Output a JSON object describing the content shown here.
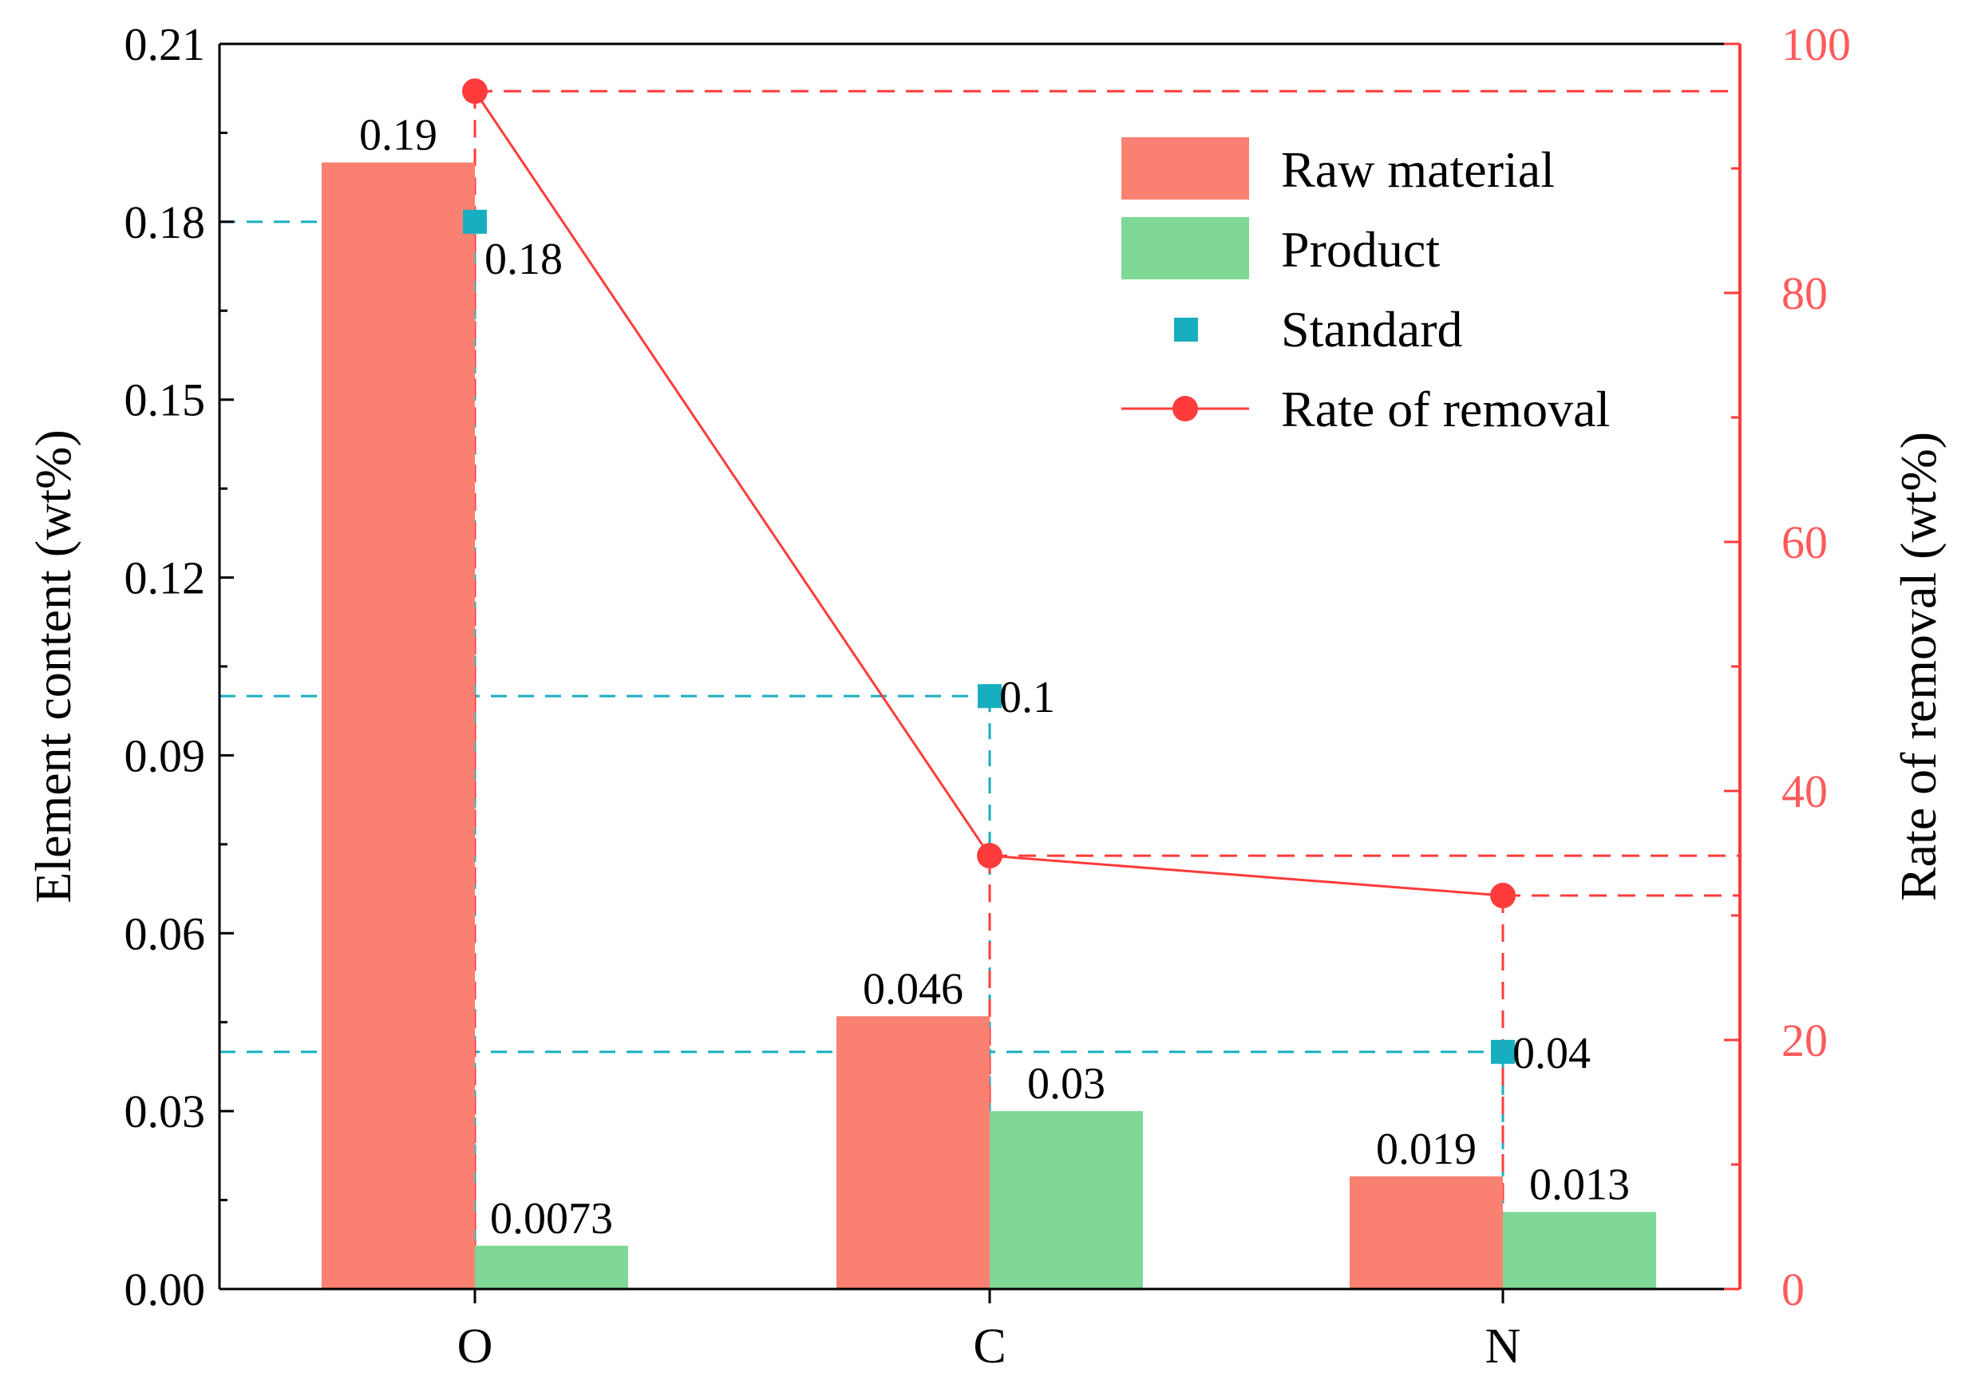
{
  "chart_data": {
    "type": "bar",
    "categories": [
      "O",
      "C",
      "N"
    ],
    "series": [
      {
        "name": "Raw material",
        "kind": "bar",
        "axis": "left",
        "values": [
          0.19,
          0.046,
          0.019
        ],
        "labels": [
          "0.19",
          "0.046",
          "0.019"
        ],
        "color": "#FA8072"
      },
      {
        "name": "Product",
        "kind": "bar",
        "axis": "left",
        "values": [
          0.0073,
          0.03,
          0.013
        ],
        "labels": [
          "0.0073",
          "0.03",
          "0.013"
        ],
        "color": "#80D897"
      },
      {
        "name": "Standard",
        "kind": "scatter",
        "axis": "left",
        "values": [
          0.18,
          0.1,
          0.04
        ],
        "labels": [
          "0.18",
          "0.1",
          "0.04"
        ],
        "color": "#17AFC0"
      },
      {
        "name": "Rate of removal",
        "kind": "line",
        "axis": "right",
        "values": [
          96.2,
          34.8,
          31.6
        ],
        "color": "#FF3B3B"
      }
    ],
    "ylabel": "Element content (wt%)",
    "y2label": "Rate of removal (wt%)",
    "ylim": [
      0,
      0.21
    ],
    "y2lim": [
      0,
      100
    ],
    "yticks": [
      "0.00",
      "0.03",
      "0.06",
      "0.09",
      "0.12",
      "0.15",
      "0.18",
      "0.21"
    ],
    "y2ticks": [
      "0",
      "20",
      "40",
      "60",
      "80",
      "100"
    ],
    "grid": false,
    "legend_position": "top-right"
  }
}
